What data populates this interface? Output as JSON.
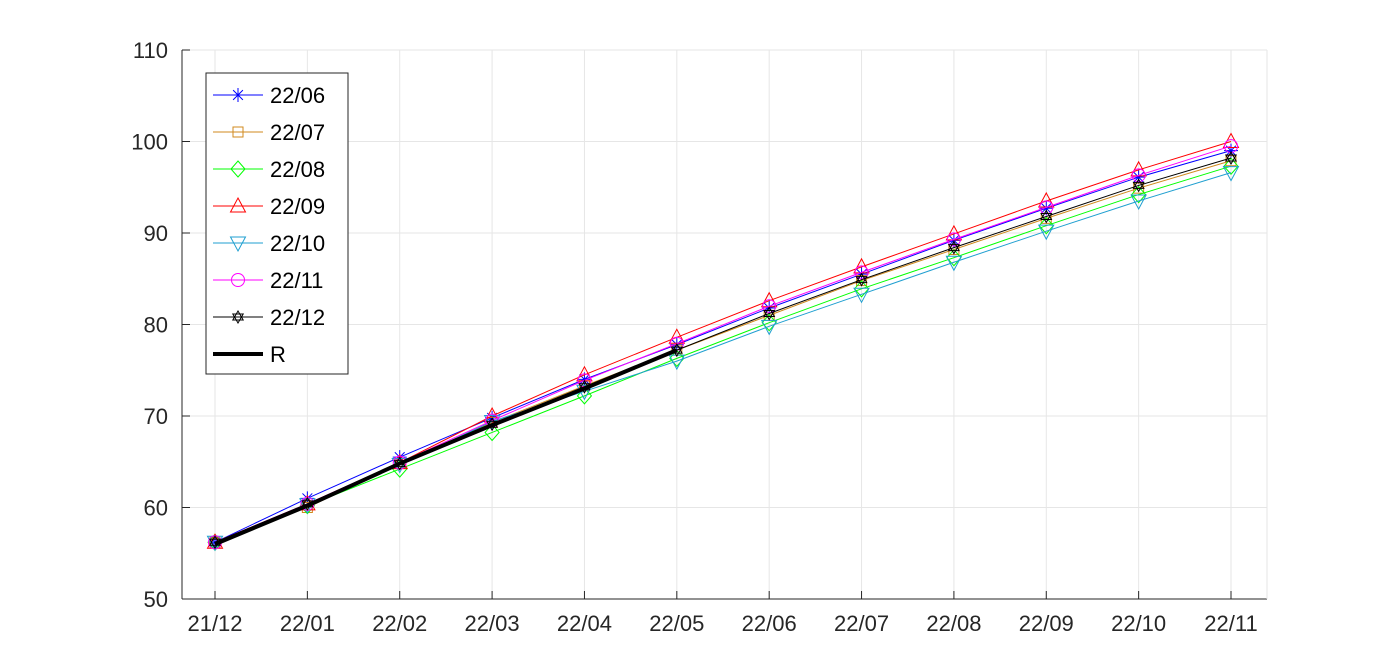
{
  "chart_data": {
    "type": "line",
    "title": "",
    "xlabel": "",
    "ylabel": "",
    "categories": [
      "21/12",
      "22/01",
      "22/02",
      "22/03",
      "22/04",
      "22/05",
      "22/06",
      "22/07",
      "22/08",
      "22/09",
      "22/10",
      "22/11"
    ],
    "yticks": [
      50,
      60,
      70,
      80,
      90,
      100,
      110
    ],
    "ylim": [
      50,
      110
    ],
    "grid": true,
    "legend_position": "top-left",
    "series": [
      {
        "name": "22/06",
        "color": "#0000ff",
        "marker": "asterisk",
        "values": [
          56.2,
          61.0,
          65.5,
          69.8,
          74.0,
          77.8,
          81.8,
          85.5,
          89.2,
          92.7,
          96.1,
          99.0
        ]
      },
      {
        "name": "22/07",
        "color": "#d08a1e",
        "marker": "square",
        "values": [
          56.2,
          60.0,
          64.8,
          69.3,
          73.3,
          77.2,
          81.0,
          84.8,
          88.2,
          91.6,
          94.9,
          97.9
        ]
      },
      {
        "name": "22/08",
        "color": "#00ff00",
        "marker": "diamond",
        "values": [
          56.2,
          60.2,
          64.2,
          68.2,
          72.2,
          76.3,
          80.2,
          83.9,
          87.3,
          90.8,
          94.2,
          97.3
        ]
      },
      {
        "name": "22/09",
        "color": "#ff0000",
        "marker": "triangle-up",
        "values": [
          56.2,
          60.4,
          64.9,
          70.0,
          74.5,
          78.6,
          82.6,
          86.3,
          89.9,
          93.5,
          96.9,
          100.0
        ]
      },
      {
        "name": "22/10",
        "color": "#1f9fd0",
        "marker": "triangle-down",
        "values": [
          56.2,
          60.3,
          64.7,
          69.4,
          72.7,
          76.0,
          79.8,
          83.3,
          86.8,
          90.2,
          93.5,
          96.6
        ]
      },
      {
        "name": "22/11",
        "color": "#ff00ff",
        "marker": "circle",
        "values": [
          56.2,
          60.4,
          64.9,
          69.5,
          73.9,
          77.9,
          82.0,
          85.7,
          89.3,
          92.8,
          96.3,
          99.5
        ]
      },
      {
        "name": "22/12",
        "color": "#000000",
        "marker": "hexagram",
        "values": [
          56.2,
          60.4,
          64.8,
          69.1,
          73.2,
          77.2,
          81.2,
          84.9,
          88.4,
          91.8,
          95.2,
          98.2
        ]
      },
      {
        "name": "R",
        "color": "#000000",
        "marker": "none",
        "thick": true,
        "values": [
          56.0,
          60.2,
          64.8,
          69.0,
          73.0,
          77.2,
          null,
          null,
          null,
          null,
          null,
          null
        ]
      }
    ]
  }
}
